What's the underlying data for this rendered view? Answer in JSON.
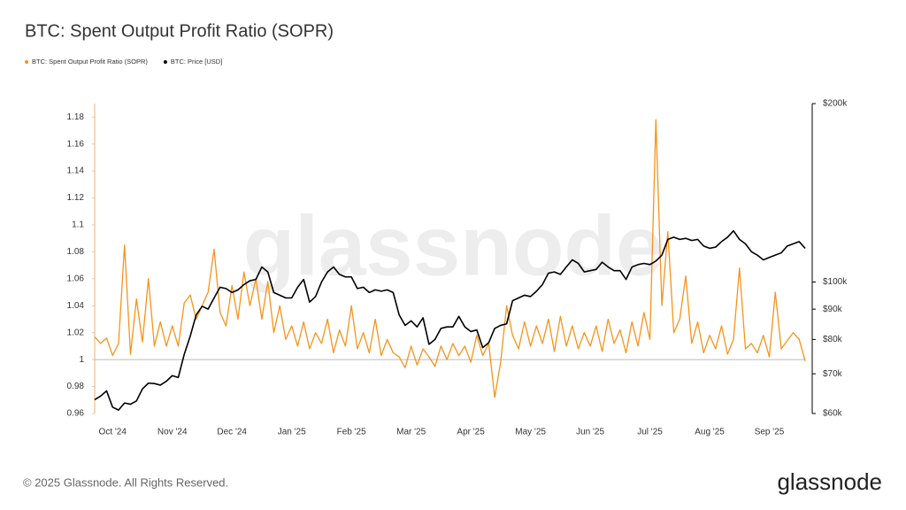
{
  "chart_data": {
    "type": "line",
    "title": "BTC: Spent Output Profit Ratio (SOPR)",
    "watermark": "glassnode",
    "footer": "© 2025 Glassnode. All Rights Reserved.",
    "logo": "glassnode",
    "categories": [
      null,
      null,
      null,
      "Oct '24",
      null,
      null,
      null,
      null,
      null,
      null,
      null,
      null,
      null,
      "Nov '24",
      null,
      null,
      null,
      null,
      null,
      null,
      null,
      null,
      null,
      "Dec '24",
      null,
      null,
      null,
      null,
      null,
      null,
      null,
      null,
      null,
      "Jan '25",
      null,
      null,
      null,
      null,
      null,
      null,
      null,
      null,
      null,
      "Feb '25",
      null,
      null,
      null,
      null,
      null,
      null,
      null,
      null,
      null,
      "Mar '25",
      null,
      null,
      null,
      null,
      null,
      null,
      null,
      null,
      null,
      "Apr '25",
      null,
      null,
      null,
      null,
      null,
      null,
      null,
      null,
      null,
      "May '25",
      null,
      null,
      null,
      null,
      null,
      null,
      null,
      null,
      null,
      "Jun '25",
      null,
      null,
      null,
      null,
      null,
      null,
      null,
      null,
      null,
      "Jul '25",
      null,
      null,
      null,
      null,
      null,
      null,
      null,
      null,
      null,
      "Aug '25",
      null,
      null,
      null,
      null,
      null,
      null,
      null,
      null,
      null,
      "Sep '25",
      null,
      null,
      null,
      null,
      null,
      null
    ],
    "series": [
      {
        "name": "BTC: Spent Output Profit Ratio (SOPR)",
        "color": "#f7931a",
        "axis": "y",
        "values": [
          1.017,
          1.012,
          1.016,
          1.003,
          1.012,
          1.085,
          1.004,
          1.045,
          1.013,
          1.06,
          1.01,
          1.028,
          1.01,
          1.025,
          1.01,
          1.042,
          1.048,
          1.03,
          1.04,
          1.05,
          1.082,
          1.035,
          1.025,
          1.055,
          1.03,
          1.065,
          1.04,
          1.06,
          1.03,
          1.058,
          1.02,
          1.04,
          1.015,
          1.025,
          1.01,
          1.028,
          1.008,
          1.02,
          1.012,
          1.03,
          1.005,
          1.022,
          1.01,
          1.04,
          1.008,
          1.02,
          1.005,
          1.03,
          1.003,
          1.015,
          1.005,
          1.002,
          0.994,
          1.01,
          0.996,
          1.008,
          1.002,
          0.995,
          1.01,
          1.0,
          1.012,
          1.003,
          1.01,
          0.998,
          1.018,
          1.003,
          1.012,
          0.972,
          0.998,
          1.04,
          1.018,
          1.008,
          1.028,
          1.01,
          1.025,
          1.012,
          1.03,
          1.006,
          1.032,
          1.01,
          1.025,
          1.008,
          1.02,
          1.01,
          1.025,
          1.006,
          1.03,
          1.012,
          1.022,
          1.005,
          1.028,
          1.01,
          1.035,
          1.015,
          1.178,
          1.04,
          1.095,
          1.02,
          1.03,
          1.062,
          1.012,
          1.028,
          1.005,
          1.018,
          1.008,
          1.025,
          1.004,
          1.015,
          1.068,
          1.008,
          1.012,
          1.005,
          1.018,
          1.002,
          1.05,
          1.008,
          1.014,
          1.02,
          1.015,
          0.999
        ]
      },
      {
        "name": "BTC: Price [USD]",
        "color": "#000000",
        "axis": "y2",
        "values": [
          63300,
          64200,
          65500,
          61500,
          60800,
          62500,
          62200,
          63000,
          66000,
          67500,
          67400,
          67000,
          68000,
          69500,
          69000,
          75500,
          81000,
          88000,
          91000,
          90000,
          94000,
          98000,
          97500,
          96000,
          97000,
          99000,
          100500,
          101000,
          106000,
          104000,
          96000,
          95000,
          94000,
          94000,
          98000,
          101000,
          92500,
          94500,
          100000,
          104000,
          106000,
          103000,
          102000,
          102000,
          97500,
          98000,
          96000,
          97000,
          96500,
          97000,
          96000,
          88000,
          84500,
          86000,
          84000,
          87000,
          78500,
          80000,
          83500,
          84000,
          84000,
          87500,
          84000,
          82500,
          83000,
          77500,
          79000,
          83500,
          84500,
          85000,
          93000,
          94000,
          95000,
          94500,
          96500,
          99000,
          103500,
          104000,
          103000,
          106000,
          109000,
          107500,
          104000,
          104500,
          105000,
          108000,
          106000,
          104500,
          104500,
          101000,
          106000,
          107000,
          107500,
          107000,
          108500,
          111000,
          118000,
          119000,
          118000,
          118500,
          117500,
          118000,
          115000,
          114000,
          114500,
          117000,
          119000,
          122000,
          118000,
          116000,
          112500,
          111000,
          109000,
          110000,
          111000,
          112000,
          115000,
          116000,
          117000,
          114000
        ]
      }
    ],
    "ylim": [
      0.96,
      1.19
    ],
    "yticks": [
      0.96,
      0.98,
      1,
      1.02,
      1.04,
      1.06,
      1.08,
      1.1,
      1.12,
      1.14,
      1.16,
      1.18
    ],
    "y2lim": [
      60000,
      200000
    ],
    "y2scale": "log",
    "y2ticks": [
      {
        "value": 60000,
        "label": "$60k"
      },
      {
        "value": 70000,
        "label": "$70k"
      },
      {
        "value": 80000,
        "label": "$80k"
      },
      {
        "value": 90000,
        "label": "$90k"
      },
      {
        "value": 100000,
        "label": "$100k"
      },
      {
        "value": 200000,
        "label": "$200k"
      }
    ],
    "reference_line": 1,
    "grid": false,
    "legend": "top-left"
  }
}
